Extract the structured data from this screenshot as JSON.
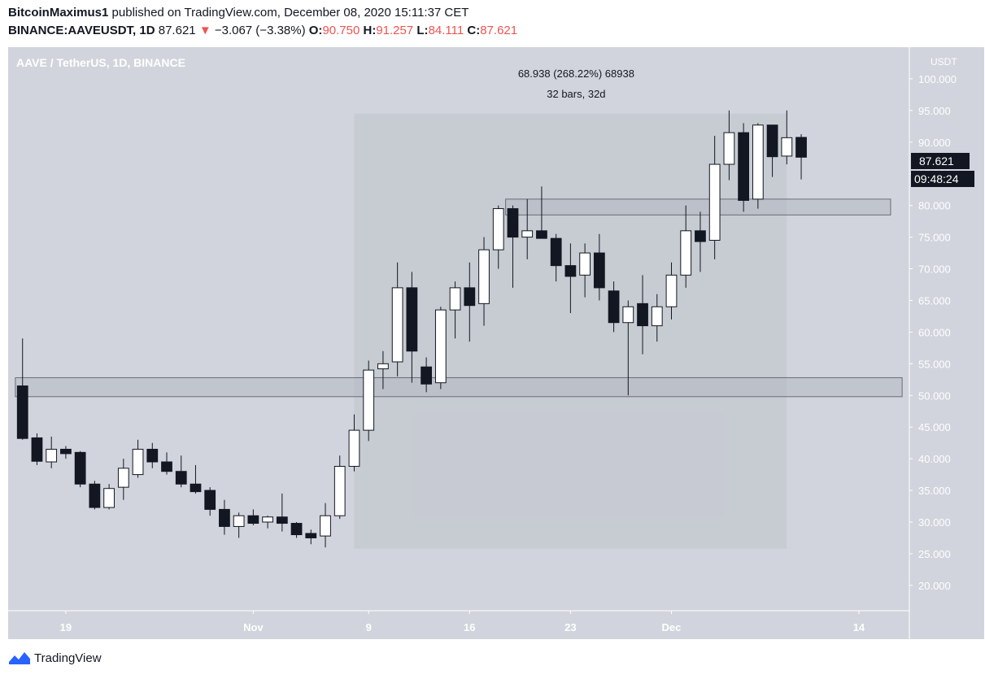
{
  "header": {
    "author": "BitcoinMaximus1",
    "published_text": "published on TradingView.com, December 08, 2020 15:11:37 CET",
    "symbol": "BINANCE:AAVEUSDT, 1D",
    "last": "87.621",
    "change_arrow": "▼",
    "change": "−3.067 (−3.38%)",
    "open_label": "O:",
    "open": "90.750",
    "high_label": "H:",
    "high": "91.257",
    "low_label": "L:",
    "low": "84.111",
    "close_label": "C:",
    "close": "87.621"
  },
  "chart_data": {
    "type": "candlestick",
    "title": "AAVE / TetherUS, 1D, BINANCE",
    "currency_label": "USDT",
    "ylim": [
      16,
      105
    ],
    "y_ticks": [
      "20.000",
      "25.000",
      "30.000",
      "35.000",
      "40.000",
      "45.000",
      "50.000",
      "55.000",
      "60.000",
      "65.000",
      "70.000",
      "75.000",
      "80.000",
      "85.000",
      "90.000",
      "95.000",
      "100.000"
    ],
    "x_range": [
      0,
      62.5
    ],
    "x_ticks": [
      {
        "label": "19",
        "x": 4
      },
      {
        "label": "Nov",
        "x": 17
      },
      {
        "label": "9",
        "x": 25
      },
      {
        "label": "16",
        "x": 32
      },
      {
        "label": "23",
        "x": 39
      },
      {
        "label": "Dec",
        "x": 46
      },
      {
        "label": "14",
        "x": 59
      }
    ],
    "price_label": "87.621",
    "countdown_label": "09:48:24",
    "candles": [
      {
        "o": 51.5,
        "h": 59.0,
        "l": 43.0,
        "c": 43.2
      },
      {
        "o": 43.3,
        "h": 44.0,
        "l": 39.0,
        "c": 39.6
      },
      {
        "o": 39.5,
        "h": 43.5,
        "l": 38.5,
        "c": 41.5
      },
      {
        "o": 41.5,
        "h": 42.0,
        "l": 40.0,
        "c": 40.8
      },
      {
        "o": 41.0,
        "h": 41.2,
        "l": 35.5,
        "c": 36.0
      },
      {
        "o": 36.0,
        "h": 36.5,
        "l": 32.0,
        "c": 32.3
      },
      {
        "o": 32.3,
        "h": 36.0,
        "l": 32.0,
        "c": 35.3
      },
      {
        "o": 35.5,
        "h": 40.0,
        "l": 33.5,
        "c": 38.5
      },
      {
        "o": 37.5,
        "h": 43.0,
        "l": 37.0,
        "c": 41.5
      },
      {
        "o": 41.5,
        "h": 42.5,
        "l": 38.5,
        "c": 39.5
      },
      {
        "o": 39.5,
        "h": 41.0,
        "l": 37.5,
        "c": 38.0
      },
      {
        "o": 38.0,
        "h": 40.5,
        "l": 35.5,
        "c": 36.0
      },
      {
        "o": 36.0,
        "h": 39.0,
        "l": 34.5,
        "c": 34.8
      },
      {
        "o": 35.0,
        "h": 35.5,
        "l": 31.0,
        "c": 32.0
      },
      {
        "o": 32.0,
        "h": 33.5,
        "l": 28.0,
        "c": 29.3
      },
      {
        "o": 29.3,
        "h": 31.5,
        "l": 27.5,
        "c": 31.0
      },
      {
        "o": 31.0,
        "h": 32.0,
        "l": 29.5,
        "c": 29.8
      },
      {
        "o": 30.0,
        "h": 31.0,
        "l": 29.0,
        "c": 30.8
      },
      {
        "o": 30.8,
        "h": 34.5,
        "l": 28.5,
        "c": 29.8
      },
      {
        "o": 29.8,
        "h": 30.0,
        "l": 27.5,
        "c": 28.0
      },
      {
        "o": 28.2,
        "h": 28.8,
        "l": 26.5,
        "c": 27.5
      },
      {
        "o": 27.8,
        "h": 33.0,
        "l": 26.0,
        "c": 31.0
      },
      {
        "o": 31.0,
        "h": 40.5,
        "l": 30.5,
        "c": 38.8
      },
      {
        "o": 38.8,
        "h": 47.0,
        "l": 38.0,
        "c": 44.5
      },
      {
        "o": 44.5,
        "h": 55.5,
        "l": 42.8,
        "c": 54.0
      },
      {
        "o": 54.2,
        "h": 57.0,
        "l": 51.0,
        "c": 55.0
      },
      {
        "o": 55.3,
        "h": 71.0,
        "l": 53.0,
        "c": 67.0
      },
      {
        "o": 67.0,
        "h": 69.5,
        "l": 52.0,
        "c": 57.0
      },
      {
        "o": 54.5,
        "h": 56.0,
        "l": 50.5,
        "c": 51.8
      },
      {
        "o": 52.0,
        "h": 64.0,
        "l": 51.0,
        "c": 63.5
      },
      {
        "o": 63.5,
        "h": 68.0,
        "l": 59.0,
        "c": 67.0
      },
      {
        "o": 67.0,
        "h": 71.0,
        "l": 58.5,
        "c": 64.2
      },
      {
        "o": 64.5,
        "h": 75.0,
        "l": 61.0,
        "c": 73.0
      },
      {
        "o": 73.0,
        "h": 80.0,
        "l": 70.0,
        "c": 79.5
      },
      {
        "o": 79.5,
        "h": 80.0,
        "l": 67.0,
        "c": 75.0
      },
      {
        "o": 75.0,
        "h": 81.0,
        "l": 71.5,
        "c": 76.0
      },
      {
        "o": 76.0,
        "h": 83.0,
        "l": 75.0,
        "c": 74.8
      },
      {
        "o": 74.8,
        "h": 75.5,
        "l": 68.0,
        "c": 70.5
      },
      {
        "o": 70.5,
        "h": 74.0,
        "l": 63.0,
        "c": 68.8
      },
      {
        "o": 69.0,
        "h": 74.0,
        "l": 65.5,
        "c": 72.5
      },
      {
        "o": 72.5,
        "h": 75.5,
        "l": 65.0,
        "c": 67.0
      },
      {
        "o": 66.5,
        "h": 68.0,
        "l": 60.0,
        "c": 61.5
      },
      {
        "o": 61.5,
        "h": 65.0,
        "l": 50.0,
        "c": 64.0
      },
      {
        "o": 64.5,
        "h": 69.0,
        "l": 56.5,
        "c": 61.0
      },
      {
        "o": 61.0,
        "h": 66.0,
        "l": 58.5,
        "c": 64.0
      },
      {
        "o": 64.0,
        "h": 71.0,
        "l": 62.0,
        "c": 69.0
      },
      {
        "o": 69.0,
        "h": 80.0,
        "l": 67.0,
        "c": 76.0
      },
      {
        "o": 76.0,
        "h": 79.0,
        "l": 69.5,
        "c": 74.3
      },
      {
        "o": 74.5,
        "h": 91.0,
        "l": 71.5,
        "c": 86.5
      },
      {
        "o": 86.5,
        "h": 95.0,
        "l": 84.0,
        "c": 91.5
      },
      {
        "o": 91.5,
        "h": 93.0,
        "l": 79.0,
        "c": 80.8
      },
      {
        "o": 81.0,
        "h": 93.0,
        "l": 79.5,
        "c": 92.7
      },
      {
        "o": 92.7,
        "h": 92.7,
        "l": 84.5,
        "c": 87.7
      },
      {
        "o": 87.8,
        "h": 95.0,
        "l": 86.5,
        "c": 90.7
      },
      {
        "o": 90.75,
        "h": 91.257,
        "l": 84.111,
        "c": 87.621
      }
    ],
    "zones": [
      {
        "x1": 0.5,
        "x2": 62,
        "y1": 49.8,
        "y2": 52.8
      },
      {
        "x1": 34.5,
        "x2": 61.2,
        "y1": 78.5,
        "y2": 81.0
      }
    ],
    "measure": {
      "x1": 24,
      "x2": 54,
      "y1": 25.8,
      "y2": 94.5,
      "line1": "68.938 (268.22%) 68938",
      "line2": "32 bars, 32d"
    }
  },
  "footer": {
    "brand": "TradingView"
  }
}
